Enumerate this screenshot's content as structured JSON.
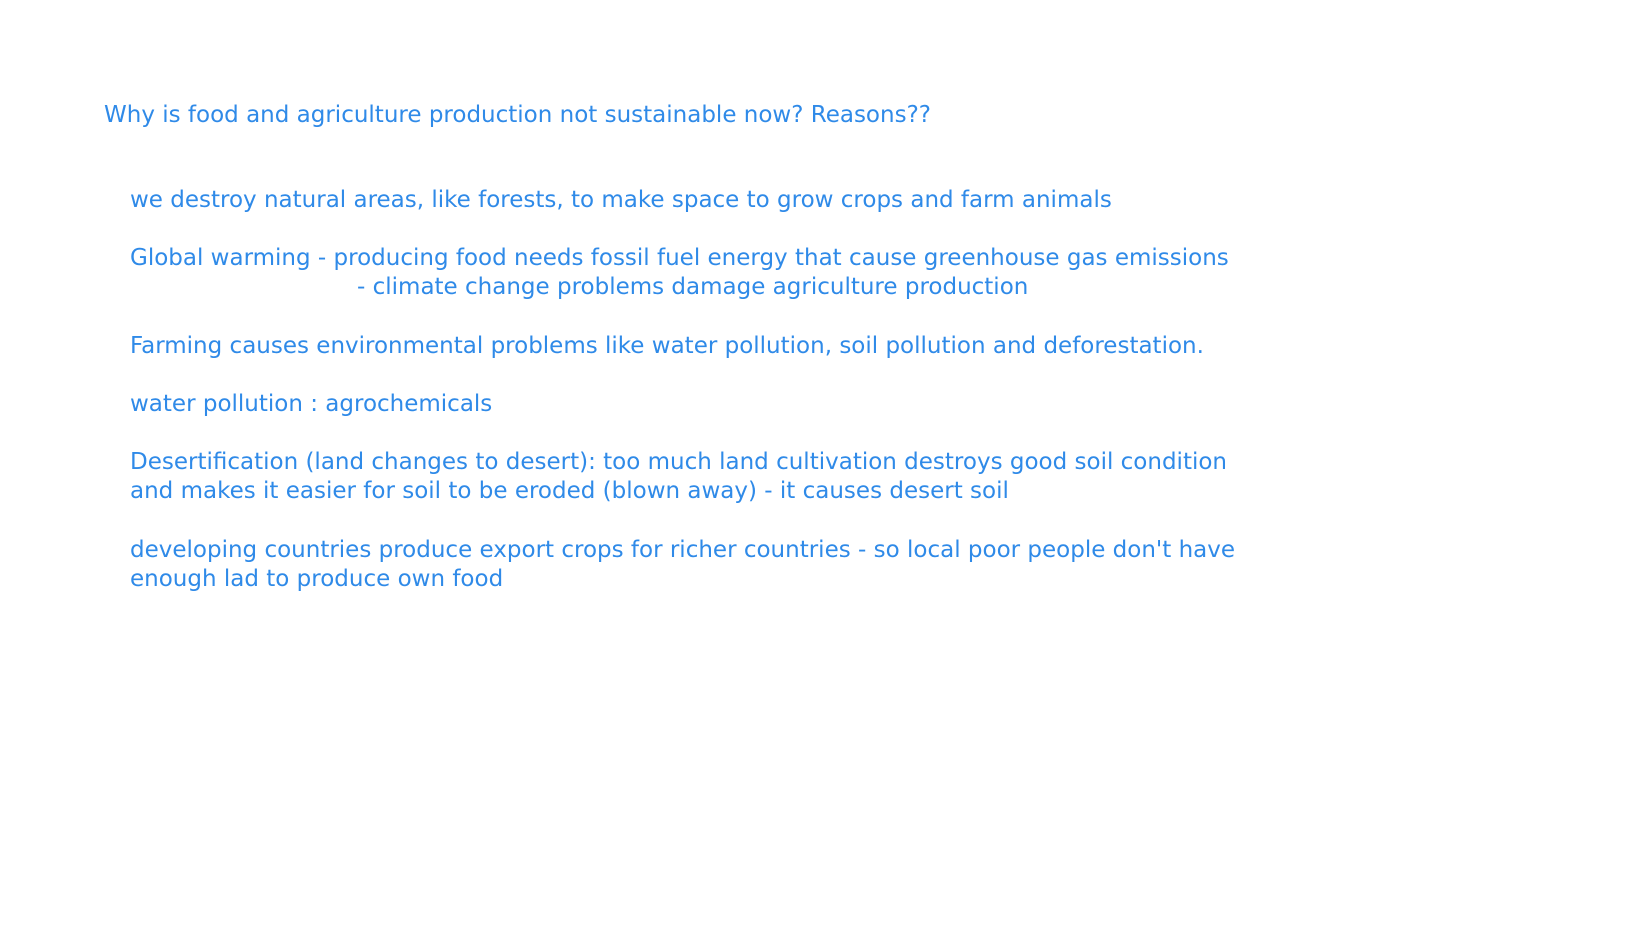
{
  "slide": {
    "title": "Why is food and agriculture production not sustainable now? Reasons??",
    "points": [
      {
        "lines": [
          "we destroy natural areas, like forests, to make space to grow crops and farm animals"
        ]
      },
      {
        "lines": [
          "Global warming - producing food needs fossil fuel energy that cause greenhouse gas emissions",
          "- climate change problems damage agriculture production"
        ]
      },
      {
        "lines": [
          "Farming causes environmental problems like water pollution, soil pollution and deforestation."
        ]
      },
      {
        "lines": [
          "water pollution : agrochemicals"
        ]
      },
      {
        "lines": [
          "Desertification (land changes to desert): too much land cultivation destroys good soil condition",
          "and makes it easier for soil to be eroded (blown away) - it causes desert soil"
        ]
      },
      {
        "lines": [
          "developing countries produce export crops for richer countries - so local poor people don't have",
          "enough lad to produce own food"
        ]
      }
    ]
  },
  "colors": {
    "text": "#2f8ae8",
    "background": "#ffffff"
  }
}
